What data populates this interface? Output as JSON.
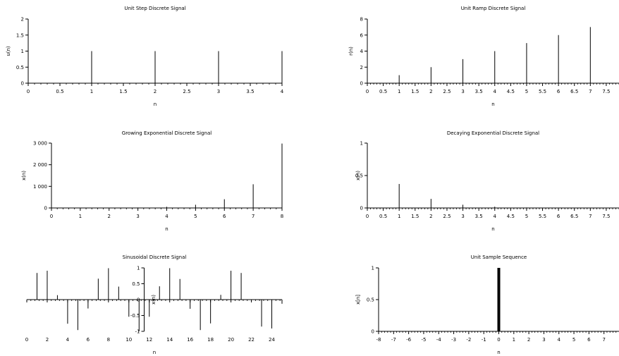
{
  "figure": {
    "background": "#ffffff",
    "stem_color": "#000000",
    "axis_color": "#000000"
  },
  "chart_data": [
    {
      "type": "stem",
      "title": "Unit Step Discrete Signal",
      "xlabel": "n",
      "ylabel": "u(n)",
      "xlim": [
        0,
        4
      ],
      "ylim": [
        0,
        2
      ],
      "xticks": [
        "0",
        "0.5",
        "1",
        "1.5",
        "2",
        "2.5",
        "3",
        "3.5",
        "4"
      ],
      "yticks": [
        "0",
        "0.5",
        "1",
        "1.5",
        "2"
      ],
      "points": [
        [
          0,
          1
        ],
        [
          1,
          1
        ],
        [
          2,
          1
        ],
        [
          3,
          1
        ],
        [
          4,
          1
        ]
      ],
      "grid": false
    },
    {
      "type": "stem",
      "title": "Unit Ramp Discrete Signal",
      "xlabel": "n",
      "ylabel": "r(n)",
      "xlim": [
        0,
        7.9
      ],
      "ylim": [
        0,
        8
      ],
      "xticks": [
        "0",
        "0.5",
        "1",
        "1.5",
        "2",
        "2.5",
        "3",
        "3.5",
        "4",
        "4.5",
        "5",
        "5.5",
        "6",
        "6.5",
        "7",
        "7.5"
      ],
      "yticks": [
        "0",
        "2",
        "4",
        "6",
        "8"
      ],
      "points": [
        [
          0,
          0
        ],
        [
          1,
          1
        ],
        [
          2,
          2
        ],
        [
          3,
          3
        ],
        [
          4,
          4
        ],
        [
          5,
          5
        ],
        [
          6,
          6
        ],
        [
          7,
          7
        ]
      ],
      "grid": false
    },
    {
      "type": "stem",
      "title": "Growing Exponential Discrete Signal",
      "xlabel": "n",
      "ylabel": "x(n)",
      "xlim": [
        0,
        8
      ],
      "ylim": [
        0,
        3000
      ],
      "xticks": [
        "0",
        "1",
        "2",
        "3",
        "4",
        "5",
        "6",
        "7",
        "8"
      ],
      "yticks": [
        "0",
        "1 000",
        "2 000",
        "3 000"
      ],
      "points": [
        [
          0,
          1
        ],
        [
          1,
          2.7
        ],
        [
          2,
          7.4
        ],
        [
          3,
          20.1
        ],
        [
          4,
          54.6
        ],
        [
          5,
          148.4
        ],
        [
          6,
          403.4
        ],
        [
          7,
          1096.6
        ],
        [
          8,
          2981
        ]
      ],
      "grid": false
    },
    {
      "type": "stem",
      "title": "Decaying Exponential Discrete Signal",
      "xlabel": "n",
      "ylabel": "x(n)",
      "xlim": [
        0,
        7.9
      ],
      "ylim": [
        0,
        1
      ],
      "xticks": [
        "0",
        "0.5",
        "1",
        "1.5",
        "2",
        "2.5",
        "3",
        "3.5",
        "4",
        "4.5",
        "5",
        "5.5",
        "6",
        "6.5",
        "7",
        "7.5"
      ],
      "yticks": [
        "0",
        "0.5",
        "1"
      ],
      "points": [
        [
          0,
          1
        ],
        [
          1,
          0.37
        ],
        [
          2,
          0.14
        ],
        [
          3,
          0.05
        ],
        [
          4,
          0.02
        ],
        [
          5,
          0.007
        ],
        [
          6,
          0.0025
        ],
        [
          7,
          0.0009
        ]
      ],
      "grid": false
    },
    {
      "type": "stem",
      "title": "Sinusoidal Discrete Signal",
      "xlabel": "n",
      "ylabel": "x(n)",
      "xlim": [
        0,
        25
      ],
      "ylim": [
        -1,
        1
      ],
      "xticks": [
        "0",
        "2",
        "4",
        "6",
        "8",
        "10",
        "12",
        "14",
        "16",
        "18",
        "20",
        "22",
        "24"
      ],
      "yticks": [
        "-1",
        "-0.5",
        "0",
        "0.5",
        "1"
      ],
      "points": [
        [
          1,
          0.84
        ],
        [
          2,
          0.91
        ],
        [
          3,
          0.14
        ],
        [
          4,
          -0.76
        ],
        [
          5,
          -0.96
        ],
        [
          6,
          -0.28
        ],
        [
          7,
          0.66
        ],
        [
          8,
          0.99
        ],
        [
          9,
          0.41
        ],
        [
          10,
          -0.54
        ],
        [
          11,
          -1.0
        ],
        [
          12,
          -0.54
        ],
        [
          13,
          0.42
        ],
        [
          14,
          0.99
        ],
        [
          15,
          0.65
        ],
        [
          16,
          -0.29
        ],
        [
          17,
          -0.96
        ],
        [
          18,
          -0.75
        ],
        [
          19,
          0.15
        ],
        [
          20,
          0.91
        ],
        [
          21,
          0.84
        ],
        [
          22,
          -0.01
        ],
        [
          23,
          -0.85
        ],
        [
          24,
          -0.91
        ],
        [
          25,
          -0.13
        ]
      ],
      "y_axis_at_x": 11.5,
      "grid": false
    },
    {
      "type": "stem",
      "title": "Unit Sample Sequence",
      "xlabel": "n",
      "ylabel": "x[n]",
      "xlim": [
        -8,
        8
      ],
      "ylim": [
        0,
        1
      ],
      "xticks": [
        "-8",
        "-7",
        "-6",
        "-5",
        "-4",
        "-3",
        "-2",
        "-1",
        "0",
        "1",
        "2",
        "3",
        "4",
        "5",
        "6",
        "7"
      ],
      "yticks": [
        "0",
        "0.5",
        "1"
      ],
      "points": [
        [
          0,
          1
        ]
      ],
      "stem_weight": "heavy",
      "grid": false
    }
  ]
}
